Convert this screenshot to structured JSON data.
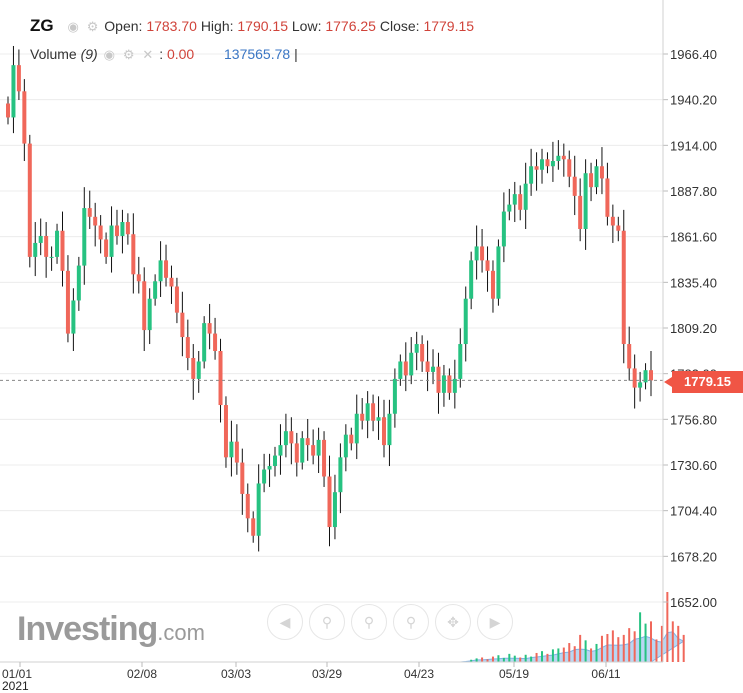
{
  "header": {
    "symbol": "ZG",
    "open_label": "Open:",
    "open": "1783.70",
    "high_label": "High:",
    "high": "1790.15",
    "low_label": "Low:",
    "low": "1776.25",
    "close_label": "Close:",
    "close": "1779.15",
    "volume_label": "Volume",
    "volume_period": "(9)",
    "volume_value": "0.00",
    "volume_ma": "137565.78",
    "cursor": "|"
  },
  "price_tag": "1779.15",
  "logo": {
    "main": "Investing",
    "suffix": ".com"
  },
  "year_label": "2021",
  "zoom_buttons": [
    "scroll-left-icon",
    "zoom-in-icon",
    "zoom-out-icon",
    "zoom-reset-icon",
    "auto-scale-icon",
    "scroll-right-icon"
  ],
  "colors": {
    "up": "#26c281",
    "down": "#f0675a",
    "volume_area": "#b9d6f2",
    "last_price": "#f05545"
  },
  "chart_data": {
    "type": "candlestick",
    "y_ticks": [
      "1966.40",
      "1940.20",
      "1914.00",
      "1887.80",
      "1861.60",
      "1835.40",
      "1809.20",
      "1783.00",
      "1756.80",
      "1730.60",
      "1704.40",
      "1678.20",
      "1652.00"
    ],
    "x_ticks": [
      "01/01",
      "02/08",
      "03/03",
      "03/29",
      "04/23",
      "05/19",
      "06/11"
    ],
    "ylim": [
      1640,
      1985
    ],
    "last_price": 1779.15,
    "closes": [
      1930,
      1960,
      1945,
      1915,
      1850,
      1858,
      1862,
      1850,
      1850,
      1865,
      1842,
      1806,
      1825,
      1845,
      1878,
      1873,
      1868,
      1860,
      1850,
      1868,
      1862,
      1870,
      1863,
      1840,
      1836,
      1808,
      1826,
      1836,
      1848,
      1838,
      1833,
      1818,
      1804,
      1792,
      1780,
      1790,
      1812,
      1806,
      1796,
      1765,
      1735,
      1744,
      1732,
      1714,
      1700,
      1690,
      1720,
      1728,
      1730,
      1736,
      1742,
      1750,
      1743,
      1732,
      1746,
      1742,
      1736,
      1745,
      1724,
      1695,
      1715,
      1735,
      1748,
      1743,
      1760,
      1756,
      1766,
      1756,
      1758,
      1742,
      1760,
      1780,
      1790,
      1782,
      1795,
      1800,
      1790,
      1784,
      1787,
      1772,
      1782,
      1772,
      1780,
      1800,
      1826,
      1848,
      1856,
      1848,
      1842,
      1826,
      1856,
      1876,
      1880,
      1886,
      1877,
      1892,
      1902,
      1900,
      1906,
      1902,
      1905,
      1908,
      1906,
      1896,
      1885,
      1866,
      1898,
      1890,
      1902,
      1895,
      1873,
      1868,
      1865,
      1800,
      1786,
      1775,
      1778,
      1785,
      1779.15
    ],
    "volume": [
      0,
      0,
      0,
      0,
      0,
      0,
      0,
      0,
      0,
      0,
      0,
      0,
      0,
      0,
      0,
      0,
      0,
      0,
      0,
      0,
      0,
      0,
      0,
      0,
      0,
      0,
      0,
      0,
      0,
      0,
      0,
      0,
      0,
      0,
      0,
      0,
      0,
      0,
      0,
      0,
      0,
      0,
      0,
      0,
      0,
      0,
      0,
      0,
      0,
      0,
      0,
      0,
      0,
      0,
      0,
      0,
      0,
      0,
      0,
      0,
      0,
      0,
      0,
      0,
      0,
      0,
      0,
      0,
      0,
      0,
      0,
      0,
      0,
      0,
      0,
      0,
      0,
      0,
      0,
      0,
      0,
      0,
      0,
      0,
      0,
      5,
      8,
      10,
      6,
      12,
      15,
      9,
      18,
      14,
      10,
      16,
      12,
      20,
      24,
      18,
      28,
      30,
      32,
      42,
      35,
      60,
      48,
      30,
      40,
      58,
      62,
      70,
      55,
      60,
      75,
      68,
      110,
      85,
      90,
      50,
      80,
      155,
      90,
      80,
      60
    ]
  }
}
